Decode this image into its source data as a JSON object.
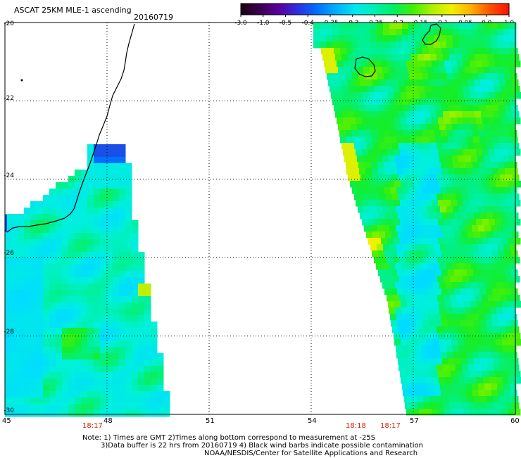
{
  "header": {
    "title": "ASCAT 25KM MLE-1 ascending",
    "date": "20160719"
  },
  "colorbar": {
    "labels": [
      "-3.0",
      "-1.0",
      "-0.5",
      "-0.4",
      "-0.35",
      "-0.3",
      "-0.25",
      "-0.2",
      "-0.15",
      "-0.1",
      "-0.05",
      "0.0",
      "1.0"
    ],
    "colors": [
      "#1a0010",
      "#3a0050",
      "#5a00a0",
      "#2a30e0",
      "#0070ff",
      "#00b0ff",
      "#00e8f0",
      "#00f0b0",
      "#00f060",
      "#40f000",
      "#b0f000",
      "#f0f000",
      "#ffb000",
      "#ff5000",
      "#ff1000"
    ]
  },
  "map": {
    "y_labels": [
      "-20",
      "-22",
      "-24",
      "-26",
      "-28",
      "-30"
    ],
    "x_labels": [
      "45",
      "48",
      "51",
      "54",
      "57",
      "60"
    ],
    "lon_range": [
      45,
      60
    ],
    "lat_range": [
      -30,
      -20
    ],
    "times": [
      {
        "label": "18:17",
        "lon": 48.0
      },
      {
        "label": "18:18",
        "lon": 56.2
      },
      {
        "label": "18:17",
        "lon": 57.2
      }
    ]
  },
  "footer": {
    "line1": "Note: 1) Times are GMT 2)Times along bottom correspond to measurement at -25S",
    "line2": "3)Data buffer is 22 hrs from 20160719 4) Black wind barbs indicate possible contamination",
    "line3": "NOAA/NESDIS/Center for Satellite Applications and Research"
  }
}
